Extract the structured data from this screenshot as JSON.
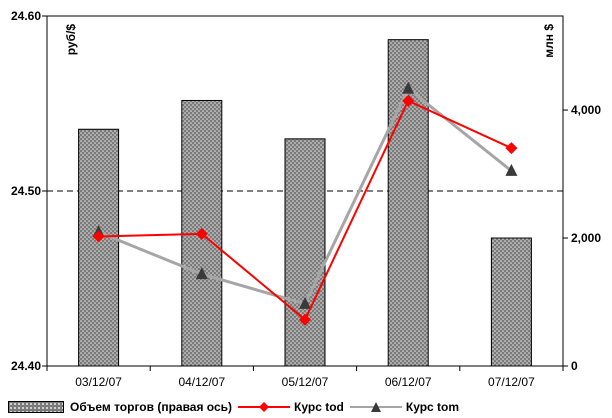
{
  "chart_data": {
    "type": "bar+line",
    "categories": [
      "03/12/07",
      "04/12/07",
      "05/12/07",
      "06/12/07",
      "07/12/07"
    ],
    "bar_series": {
      "name": "Объем торгов (правая ось)",
      "axis": "right",
      "values": [
        3700,
        4150,
        3550,
        5100,
        2000
      ],
      "color": "#7b7b7b"
    },
    "line_series": [
      {
        "name": "Курс tod",
        "axis": "left",
        "values": [
          24.474,
          24.4755,
          24.4265,
          24.5515,
          24.5245
        ],
        "color": "#ff0000",
        "marker": "diamond"
      },
      {
        "name": "Курс tom",
        "axis": "left",
        "values": [
          24.4765,
          24.4525,
          24.4355,
          24.5585,
          24.5115
        ],
        "color": "#a6a6a6",
        "marker": "triangle"
      }
    ],
    "left_axis": {
      "label": "руб/$",
      "ylim": [
        24.4,
        24.6
      ],
      "ticks": [
        24.4,
        24.5,
        24.6
      ],
      "tick_labels": [
        "24.40",
        "24.50",
        "24.60"
      ]
    },
    "right_axis": {
      "label": "млн $",
      "ylim": [
        0,
        5470
      ],
      "ticks": [
        0,
        2000,
        4000
      ],
      "tick_labels": [
        "0",
        "2,000",
        "4,000"
      ]
    },
    "reference_line": {
      "axis": "left",
      "value": 24.5,
      "style": "dashed"
    },
    "grid": false,
    "legend_position": "bottom"
  }
}
